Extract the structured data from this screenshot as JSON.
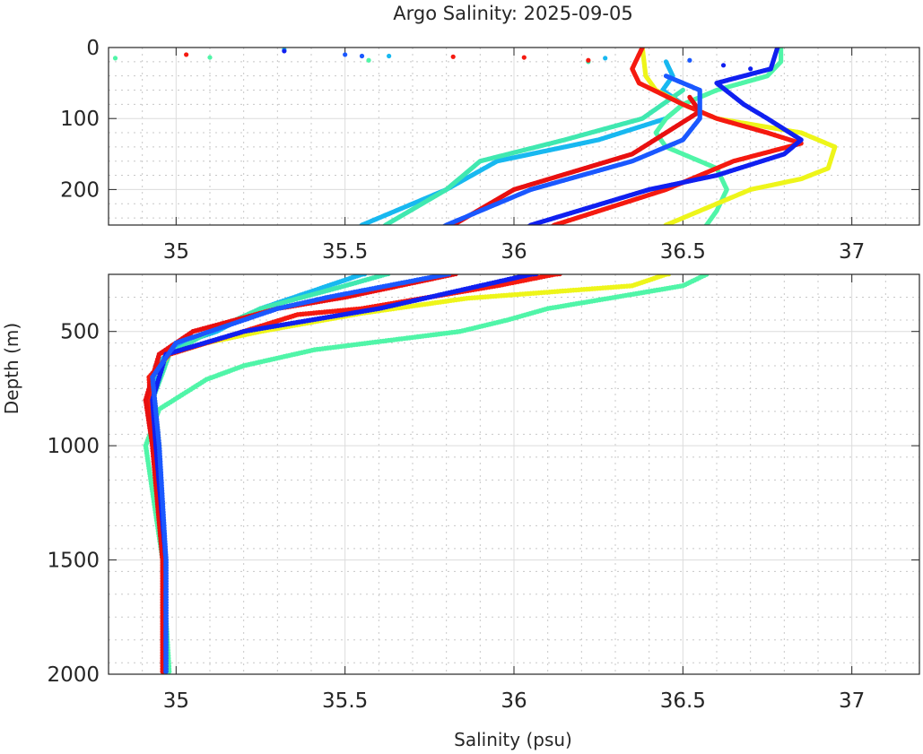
{
  "chart_data": {
    "type": "scatter",
    "title": "Argo Salinity: 2025-09-05",
    "xlabel": "Salinity (psu)",
    "ylabel": "Depth (m)",
    "grid": true,
    "panels": [
      {
        "name": "upper",
        "xlim": [
          34.8,
          37.2
        ],
        "ylim": [
          0,
          250
        ],
        "y_reversed": true,
        "xticks": [
          35,
          35.5,
          36,
          36.5,
          37
        ],
        "xtick_labels": [
          "35",
          "35.5",
          "36",
          "36.5",
          "37"
        ],
        "yticks": [
          0,
          100,
          200
        ],
        "ytick_labels": [
          "0",
          "100",
          "200"
        ],
        "x_minor_step": 0.1,
        "y_minor_step": 20
      },
      {
        "name": "lower",
        "xlim": [
          34.8,
          37.2
        ],
        "ylim": [
          250,
          2000
        ],
        "y_reversed": true,
        "xticks": [
          35,
          35.5,
          36,
          36.5,
          37
        ],
        "xtick_labels": [
          "35",
          "35.5",
          "36",
          "36.5",
          "37"
        ],
        "yticks": [
          500,
          1000,
          1500,
          2000
        ],
        "ytick_labels": [
          "500",
          "1000",
          "1500",
          "2000"
        ],
        "x_minor_step": 0.1,
        "y_minor_step": 100
      }
    ],
    "series": [
      {
        "name": "profile-cyan",
        "color": "#18b8f0",
        "surface_points": [
          [
            3,
            35.32
          ],
          [
            12,
            35.63
          ],
          [
            15,
            36.27
          ]
        ],
        "points": [
          [
            20,
            36.45
          ],
          [
            40,
            36.47
          ],
          [
            60,
            36.44
          ],
          [
            80,
            36.5
          ],
          [
            100,
            36.45
          ],
          [
            130,
            36.25
          ],
          [
            160,
            35.95
          ],
          [
            200,
            35.8
          ],
          [
            250,
            35.55
          ],
          [
            300,
            35.45
          ],
          [
            400,
            35.25
          ],
          [
            500,
            35.12
          ],
          [
            560,
            35.0
          ],
          [
            650,
            34.94
          ],
          [
            800,
            34.93
          ],
          [
            1000,
            34.94
          ],
          [
            1500,
            34.97
          ],
          [
            2000,
            34.97
          ]
        ]
      },
      {
        "name": "profile-aqua-1",
        "color": "#50f5a8",
        "surface_points": [
          [
            15,
            34.82
          ],
          [
            14,
            35.1
          ],
          [
            18,
            35.57
          ]
        ],
        "points": [
          [
            0,
            36.79
          ],
          [
            20,
            36.79
          ],
          [
            40,
            36.75
          ],
          [
            60,
            36.6
          ],
          [
            80,
            36.5
          ],
          [
            100,
            36.45
          ],
          [
            120,
            36.42
          ],
          [
            140,
            36.45
          ],
          [
            170,
            36.6
          ],
          [
            200,
            36.63
          ],
          [
            230,
            36.6
          ],
          [
            250,
            36.57
          ],
          [
            300,
            36.5
          ],
          [
            350,
            36.3
          ],
          [
            400,
            36.1
          ],
          [
            450,
            35.98
          ],
          [
            500,
            35.84
          ],
          [
            580,
            35.41
          ],
          [
            650,
            35.2
          ],
          [
            710,
            35.09
          ],
          [
            840,
            34.95
          ],
          [
            1000,
            34.91
          ],
          [
            1200,
            34.93
          ],
          [
            1500,
            34.96
          ],
          [
            2000,
            34.98
          ]
        ]
      },
      {
        "name": "profile-aqua-2",
        "color": "#40e8b0",
        "surface_points": [
          [
            20,
            36.22
          ]
        ],
        "points": [
          [
            60,
            36.5
          ],
          [
            100,
            36.38
          ],
          [
            130,
            36.15
          ],
          [
            160,
            35.9
          ],
          [
            200,
            35.8
          ],
          [
            250,
            35.62
          ],
          [
            300,
            35.5
          ],
          [
            400,
            35.25
          ],
          [
            500,
            35.1
          ],
          [
            600,
            34.98
          ],
          [
            800,
            34.93
          ],
          [
            1000,
            34.93
          ],
          [
            1500,
            34.96
          ],
          [
            2000,
            34.97
          ]
        ]
      },
      {
        "name": "profile-yellow",
        "color": "#eef51a",
        "surface_points": [],
        "points": [
          [
            0,
            36.38
          ],
          [
            40,
            36.39
          ],
          [
            60,
            36.42
          ],
          [
            80,
            36.5
          ],
          [
            100,
            36.6
          ],
          [
            120,
            36.85
          ],
          [
            140,
            36.95
          ],
          [
            170,
            36.93
          ],
          [
            185,
            36.85
          ],
          [
            200,
            36.7
          ],
          [
            230,
            36.55
          ],
          [
            250,
            36.45
          ],
          [
            300,
            36.35
          ],
          [
            355,
            35.86
          ],
          [
            420,
            35.55
          ],
          [
            500,
            35.25
          ],
          [
            550,
            35.09
          ],
          [
            600,
            34.98
          ],
          [
            700,
            34.93
          ],
          [
            1000,
            34.95
          ],
          [
            1500,
            34.96
          ],
          [
            2000,
            34.97
          ]
        ]
      },
      {
        "name": "profile-red-1",
        "color": "#f51a10",
        "surface_points": [
          [
            10,
            35.03
          ],
          [
            13,
            35.82
          ],
          [
            14,
            36.03
          ],
          [
            18,
            36.22
          ]
        ],
        "points": [
          [
            0,
            36.38
          ],
          [
            30,
            36.35
          ],
          [
            50,
            36.37
          ],
          [
            80,
            36.5
          ],
          [
            100,
            36.6
          ],
          [
            120,
            36.75
          ],
          [
            135,
            36.85
          ],
          [
            160,
            36.65
          ],
          [
            200,
            36.45
          ],
          [
            250,
            36.12
          ],
          [
            300,
            35.95
          ],
          [
            400,
            35.55
          ],
          [
            426,
            35.36
          ],
          [
            500,
            35.2
          ],
          [
            600,
            34.98
          ],
          [
            700,
            34.92
          ],
          [
            1000,
            34.93
          ],
          [
            1500,
            34.96
          ],
          [
            2000,
            34.96
          ]
        ]
      },
      {
        "name": "profile-red-2",
        "color": "#e81010",
        "surface_points": [],
        "points": [
          [
            70,
            36.52
          ],
          [
            90,
            36.55
          ],
          [
            120,
            36.45
          ],
          [
            150,
            36.35
          ],
          [
            200,
            36.0
          ],
          [
            250,
            35.82
          ],
          [
            350,
            35.5
          ],
          [
            400,
            35.3
          ],
          [
            500,
            35.05
          ],
          [
            600,
            34.95
          ],
          [
            800,
            34.91
          ],
          [
            1000,
            34.93
          ],
          [
            1500,
            34.96
          ],
          [
            2000,
            34.96
          ]
        ]
      },
      {
        "name": "profile-blue-1",
        "color": "#1020f0",
        "surface_points": [
          [
            5,
            35.32
          ],
          [
            30,
            36.7
          ],
          [
            25,
            36.62
          ]
        ],
        "points": [
          [
            0,
            36.78
          ],
          [
            30,
            36.76
          ],
          [
            50,
            36.6
          ],
          [
            80,
            36.68
          ],
          [
            100,
            36.75
          ],
          [
            130,
            36.85
          ],
          [
            150,
            36.8
          ],
          [
            180,
            36.6
          ],
          [
            200,
            36.4
          ],
          [
            250,
            36.05
          ],
          [
            300,
            35.9
          ],
          [
            400,
            35.6
          ],
          [
            500,
            35.2
          ],
          [
            600,
            34.97
          ],
          [
            800,
            34.93
          ],
          [
            1000,
            34.94
          ],
          [
            1500,
            34.97
          ],
          [
            2000,
            34.97
          ]
        ]
      },
      {
        "name": "profile-blue-2",
        "color": "#1a58ff",
        "surface_points": [
          [
            10,
            35.5
          ],
          [
            12,
            35.55
          ],
          [
            18,
            36.52
          ]
        ],
        "points": [
          [
            40,
            36.45
          ],
          [
            60,
            36.55
          ],
          [
            100,
            36.55
          ],
          [
            130,
            36.5
          ],
          [
            160,
            36.35
          ],
          [
            200,
            36.05
          ],
          [
            250,
            35.8
          ],
          [
            350,
            35.45
          ],
          [
            400,
            35.3
          ],
          [
            500,
            35.1
          ],
          [
            550,
            35.0
          ],
          [
            700,
            34.93
          ],
          [
            1000,
            34.95
          ],
          [
            1500,
            34.97
          ],
          [
            2000,
            34.97
          ]
        ]
      }
    ]
  }
}
